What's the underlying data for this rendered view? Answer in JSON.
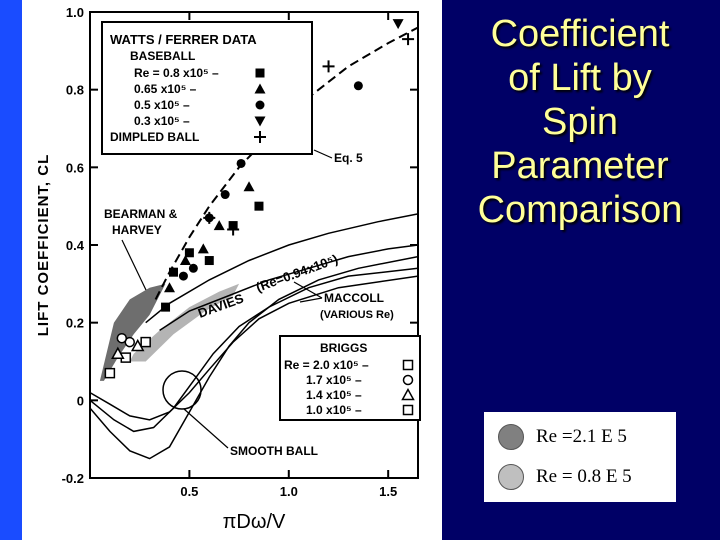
{
  "slide": {
    "title_lines": [
      "Coefficient",
      "of Lift by",
      "Spin",
      "Parameter",
      "Comparison"
    ],
    "background_color": "#000066",
    "accent_strip_color": "#1a4cff",
    "title_color": "#ffff99"
  },
  "legend": {
    "items": [
      {
        "label": "Re =2.1 E 5",
        "color": "#808080"
      },
      {
        "label": "Re = 0.8 E 5",
        "color": "#bfbfbf"
      }
    ]
  },
  "chart_data": {
    "type": "scatter",
    "ylabel": "LIFT COEFFICIENT,  CL",
    "xlabel": "πDω/V",
    "xlim": [
      0,
      1.65
    ],
    "ylim": [
      -0.2,
      1.0
    ],
    "x_ticks": [
      {
        "value": 0.5,
        "label": "0.5"
      },
      {
        "value": 1.0,
        "label": "1.0"
      },
      {
        "value": 1.5,
        "label": "1.5"
      }
    ],
    "y_ticks": [
      {
        "value": -0.2,
        "label": "-0.2"
      },
      {
        "value": 0,
        "label": "0"
      },
      {
        "value": 0.2,
        "label": "0.2"
      },
      {
        "value": 0.4,
        "label": "0.4"
      },
      {
        "value": 0.6,
        "label": "0.6"
      },
      {
        "value": 0.8,
        "label": "0.8"
      },
      {
        "value": 1.0,
        "label": "1.0"
      }
    ],
    "inset_legend_top": {
      "title": "WATTS / FERRER DATA",
      "subtitle": "BASEBALL",
      "rows": [
        "Re = 0.8  x10⁵ –",
        "0.65 x10⁵ –",
        "0.5  x10⁵ –",
        "0.3  x10⁵ –",
        "DIMPLED BALL"
      ]
    },
    "inset_legend_bottom": {
      "title": "BRIGGS",
      "rows": [
        "Re = 2.0 x10⁵ –",
        "1.7 x10⁵ –",
        "1.4 x10⁵ –",
        "1.0 x10⁵ –"
      ]
    },
    "annotations": {
      "eq5": "Eq. 5",
      "bearman": "BEARMAN &",
      "harvey": "HARVEY",
      "davies": "DAVIES",
      "davies_re": "(Re=0.94x10⁵)",
      "maccoll": "MACCOLL",
      "maccoll_sub": "(VARIOUS Re)",
      "smooth": "SMOOTH BALL"
    },
    "series": [
      {
        "name": "Re = 0.8 x10⁵",
        "marker": "square",
        "points": [
          [
            0.38,
            0.24
          ],
          [
            0.42,
            0.33
          ],
          [
            0.5,
            0.38
          ],
          [
            0.6,
            0.36
          ],
          [
            0.72,
            0.45
          ],
          [
            0.85,
            0.5
          ]
        ]
      },
      {
        "name": "0.65 x10⁵",
        "marker": "triangle",
        "points": [
          [
            0.4,
            0.29
          ],
          [
            0.48,
            0.36
          ],
          [
            0.57,
            0.39
          ],
          [
            0.65,
            0.45
          ],
          [
            0.8,
            0.55
          ]
        ]
      },
      {
        "name": "0.5 x10⁵",
        "marker": "circle",
        "points": [
          [
            0.47,
            0.32
          ],
          [
            0.52,
            0.34
          ],
          [
            0.6,
            0.47
          ],
          [
            0.68,
            0.53
          ],
          [
            0.76,
            0.61
          ],
          [
            1.35,
            0.81
          ]
        ]
      },
      {
        "name": "0.3 x10⁵",
        "marker": "triangle-down",
        "points": [
          [
            1.55,
            0.97
          ]
        ]
      },
      {
        "name": "DIMPLED BALL",
        "marker": "plus",
        "points": [
          [
            0.6,
            0.47
          ],
          [
            0.72,
            0.44
          ],
          [
            1.2,
            0.86
          ],
          [
            1.6,
            0.93
          ]
        ]
      },
      {
        "name": "Re = 2.0 x10⁵",
        "marker": "open-square",
        "points": [
          [
            0.28,
            0.15
          ],
          [
            0.18,
            0.11
          ]
        ]
      },
      {
        "name": "1.7 x10⁵",
        "marker": "open-circle",
        "points": [
          [
            0.2,
            0.15
          ],
          [
            0.16,
            0.16
          ]
        ]
      },
      {
        "name": "1.4 x10⁵",
        "marker": "open-triangle",
        "points": [
          [
            0.14,
            0.12
          ],
          [
            0.24,
            0.14
          ]
        ]
      },
      {
        "name": "1.0 x10⁵",
        "marker": "open-square",
        "points": [
          [
            0.1,
            0.07
          ]
        ]
      }
    ],
    "curves": {
      "eq5": [
        [
          0.33,
          0.26
        ],
        [
          0.4,
          0.33
        ],
        [
          0.5,
          0.42
        ],
        [
          0.6,
          0.5
        ],
        [
          0.75,
          0.6
        ],
        [
          0.9,
          0.68
        ],
        [
          1.1,
          0.78
        ],
        [
          1.3,
          0.86
        ],
        [
          1.5,
          0.92
        ],
        [
          1.65,
          0.96
        ]
      ],
      "maccoll_1": [
        [
          0.28,
          0.2
        ],
        [
          0.4,
          0.25
        ],
        [
          0.6,
          0.31
        ],
        [
          0.8,
          0.36
        ],
        [
          1.0,
          0.4
        ],
        [
          1.2,
          0.43
        ],
        [
          1.45,
          0.46
        ],
        [
          1.65,
          0.48
        ]
      ],
      "maccoll_2": [
        [
          0.35,
          0.18
        ],
        [
          0.5,
          0.23
        ],
        [
          0.7,
          0.27
        ],
        [
          0.9,
          0.31
        ],
        [
          1.1,
          0.34
        ],
        [
          1.3,
          0.37
        ],
        [
          1.5,
          0.39
        ],
        [
          1.65,
          0.4
        ]
      ],
      "smooth_1": [
        [
          0.0,
          -0.02
        ],
        [
          0.1,
          -0.08
        ],
        [
          0.2,
          -0.13
        ],
        [
          0.3,
          -0.15
        ],
        [
          0.4,
          -0.12
        ],
        [
          0.5,
          -0.03
        ],
        [
          0.6,
          0.06
        ],
        [
          0.7,
          0.14
        ],
        [
          0.8,
          0.2
        ],
        [
          0.95,
          0.26
        ],
        [
          1.15,
          0.31
        ],
        [
          1.35,
          0.34
        ],
        [
          1.65,
          0.37
        ]
      ],
      "smooth_2": [
        [
          0.0,
          0.0
        ],
        [
          0.12,
          -0.05
        ],
        [
          0.22,
          -0.08
        ],
        [
          0.32,
          -0.07
        ],
        [
          0.42,
          -0.02
        ],
        [
          0.52,
          0.05
        ],
        [
          0.62,
          0.12
        ],
        [
          0.75,
          0.19
        ],
        [
          0.9,
          0.24
        ],
        [
          1.1,
          0.29
        ],
        [
          1.3,
          0.32
        ],
        [
          1.65,
          0.34
        ]
      ],
      "smooth_3": [
        [
          0.0,
          0.02
        ],
        [
          0.1,
          -0.01
        ],
        [
          0.2,
          -0.04
        ],
        [
          0.3,
          -0.05
        ],
        [
          0.4,
          -0.03
        ],
        [
          0.5,
          0.02
        ],
        [
          0.6,
          0.08
        ],
        [
          0.72,
          0.15
        ],
        [
          0.85,
          0.21
        ],
        [
          1.0,
          0.25
        ],
        [
          1.25,
          0.29
        ],
        [
          1.65,
          0.32
        ]
      ]
    },
    "bands": {
      "bearman_harvey": [
        [
          0.05,
          0.05
        ],
        [
          0.12,
          0.2
        ],
        [
          0.2,
          0.26
        ],
        [
          0.3,
          0.29
        ],
        [
          0.38,
          0.3
        ],
        [
          0.3,
          0.22
        ],
        [
          0.22,
          0.17
        ],
        [
          0.14,
          0.11
        ],
        [
          0.07,
          0.05
        ]
      ],
      "davies": [
        [
          0.22,
          0.12
        ],
        [
          0.35,
          0.18
        ],
        [
          0.5,
          0.24
        ],
        [
          0.65,
          0.28
        ],
        [
          0.75,
          0.3
        ],
        [
          0.72,
          0.27
        ],
        [
          0.58,
          0.23
        ],
        [
          0.42,
          0.17
        ],
        [
          0.28,
          0.1
        ],
        [
          0.2,
          0.1
        ]
      ]
    }
  }
}
